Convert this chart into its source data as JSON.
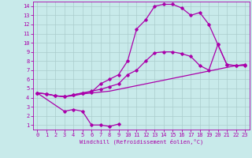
{
  "xlabel": "Windchill (Refroidissement éolien,°C)",
  "bg_color": "#c8eaea",
  "grid_color": "#aacccc",
  "line_color": "#aa00aa",
  "xlim": [
    -0.5,
    23.5
  ],
  "ylim": [
    0.5,
    14.5
  ],
  "xticks": [
    0,
    1,
    2,
    3,
    4,
    5,
    6,
    7,
    8,
    9,
    10,
    11,
    12,
    13,
    14,
    15,
    16,
    17,
    18,
    19,
    20,
    21,
    22,
    23
  ],
  "yticks": [
    1,
    2,
    3,
    4,
    5,
    6,
    7,
    8,
    9,
    10,
    11,
    12,
    13,
    14
  ],
  "curve1_x": [
    0,
    1,
    2,
    3,
    4,
    5,
    6,
    7,
    8,
    9,
    10,
    11,
    12,
    13,
    14,
    15,
    16,
    17,
    18,
    19,
    20,
    21,
    22,
    23
  ],
  "curve1_y": [
    4.5,
    4.4,
    4.2,
    4.1,
    4.2,
    4.4,
    4.5,
    4.6,
    4.7,
    4.9,
    5.1,
    5.3,
    5.5,
    5.7,
    5.9,
    6.1,
    6.3,
    6.5,
    6.7,
    6.9,
    7.1,
    7.3,
    7.5,
    7.6
  ],
  "curve2_x": [
    0,
    1,
    2,
    3,
    4,
    5,
    6,
    7,
    8,
    9,
    10,
    11,
    12,
    13,
    14,
    15,
    16,
    17,
    18,
    19,
    20,
    21,
    22,
    23
  ],
  "curve2_y": [
    4.5,
    4.4,
    4.2,
    4.1,
    4.3,
    4.5,
    4.6,
    5.5,
    6.0,
    6.5,
    8.0,
    11.5,
    12.5,
    14.0,
    14.2,
    14.2,
    13.8,
    13.0,
    13.3,
    12.0,
    9.8,
    7.6,
    7.5,
    7.5
  ],
  "curve3_x": [
    0,
    1,
    2,
    3,
    4,
    5,
    6,
    7,
    8,
    9,
    10,
    11,
    12,
    13,
    14,
    15,
    16,
    17,
    18,
    19,
    20,
    21,
    22,
    23
  ],
  "curve3_y": [
    4.5,
    4.4,
    4.2,
    4.1,
    4.3,
    4.5,
    4.7,
    4.9,
    5.2,
    5.5,
    6.5,
    7.0,
    8.0,
    8.9,
    9.0,
    9.0,
    8.8,
    8.5,
    7.5,
    7.0,
    9.8,
    7.6,
    7.5,
    7.6
  ],
  "curve4_x": [
    0,
    3,
    4,
    5,
    6,
    7,
    8,
    9
  ],
  "curve4_y": [
    4.5,
    2.5,
    2.7,
    2.5,
    1.0,
    1.0,
    0.85,
    1.1
  ]
}
